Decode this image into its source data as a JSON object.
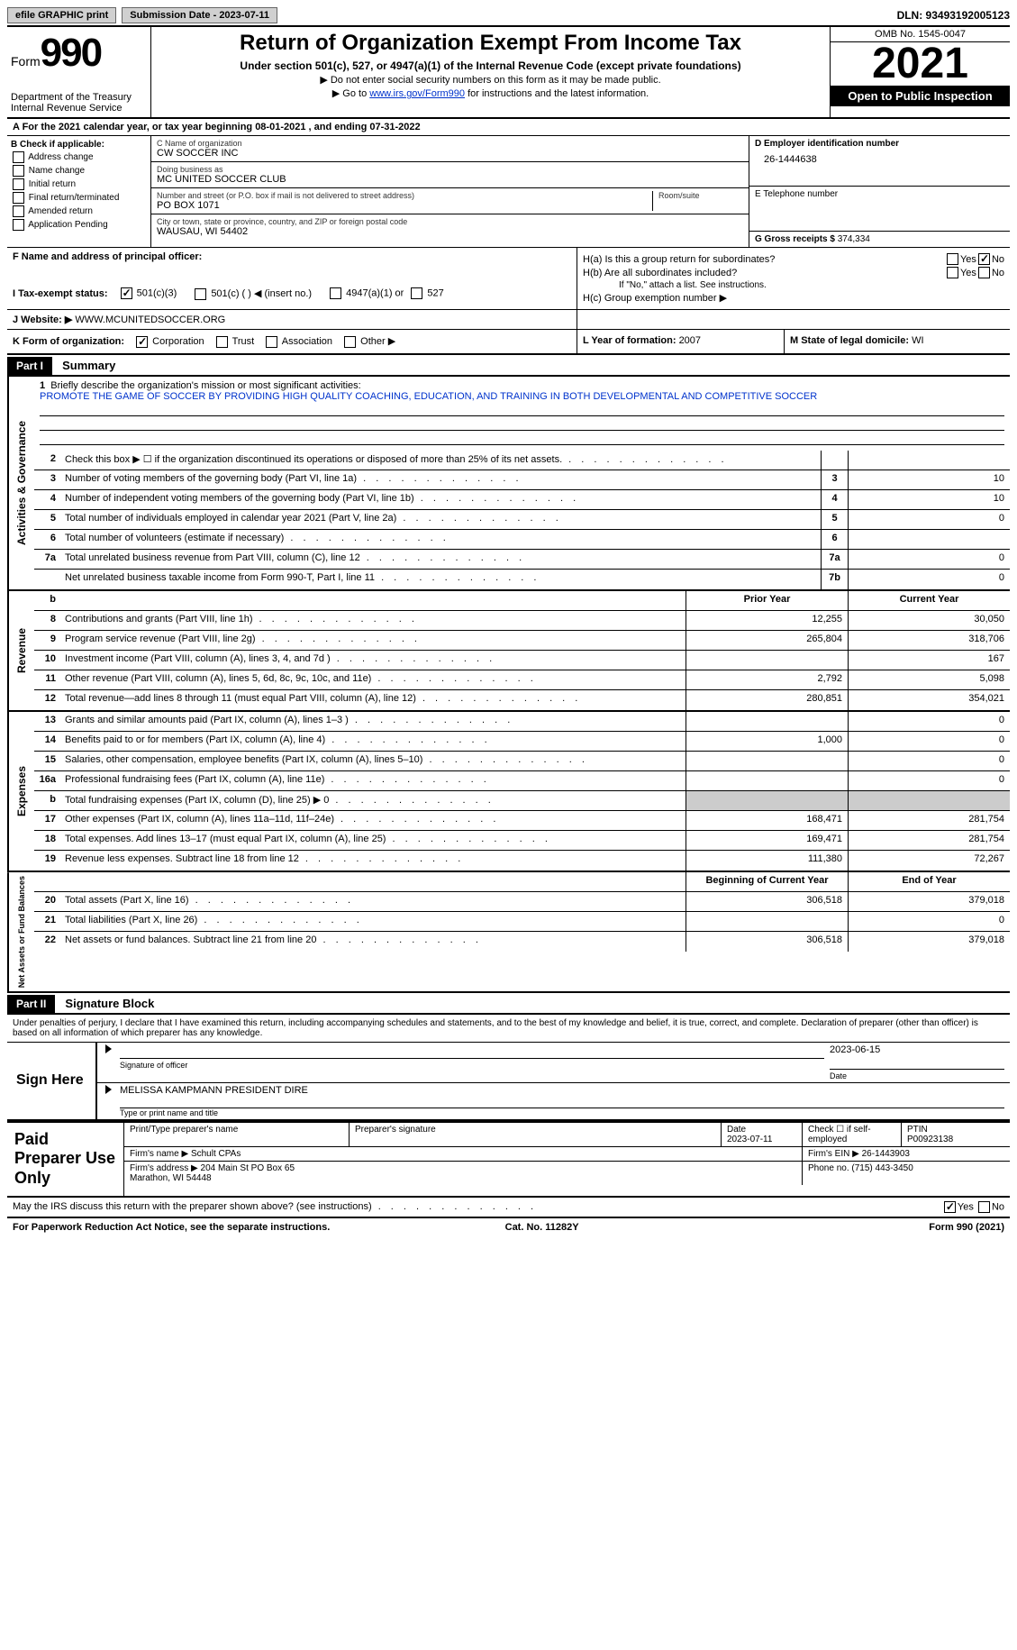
{
  "topbar": {
    "efile": "efile GRAPHIC print",
    "sub_date_label": "Submission Date - 2023-07-11",
    "dln": "DLN: 93493192005123"
  },
  "header": {
    "form_word": "Form",
    "form_num": "990",
    "dept": "Department of the Treasury\nInternal Revenue Service",
    "title": "Return of Organization Exempt From Income Tax",
    "subsection": "Under section 501(c), 527, or 4947(a)(1) of the Internal Revenue Code (except private foundations)",
    "note1": "▶ Do not enter social security numbers on this form as it may be made public.",
    "note2_pre": "▶ Go to ",
    "note2_link": "www.irs.gov/Form990",
    "note2_post": " for instructions and the latest information.",
    "omb": "OMB No. 1545-0047",
    "year": "2021",
    "open": "Open to Public Inspection"
  },
  "row_a": "A For the 2021 calendar year, or tax year beginning 08-01-2021   , and ending 07-31-2022",
  "col_b": {
    "hdr": "B Check if applicable:",
    "opts": [
      "Address change",
      "Name change",
      "Initial return",
      "Final return/terminated",
      "Amended return",
      "Application Pending"
    ]
  },
  "col_c": {
    "name_lbl": "C Name of organization",
    "name": "CW SOCCER INC",
    "dba_lbl": "Doing business as",
    "dba": "MC UNITED SOCCER CLUB",
    "street_lbl": "Number and street (or P.O. box if mail is not delivered to street address)",
    "room_lbl": "Room/suite",
    "street": "PO BOX 1071",
    "city_lbl": "City or town, state or province, country, and ZIP or foreign postal code",
    "city": "WAUSAU, WI  54402"
  },
  "col_d": {
    "ein_lbl": "D Employer identification number",
    "ein": "26-1444638",
    "tel_lbl": "E Telephone number",
    "tel": "",
    "gross_lbl": "G Gross receipts $ ",
    "gross": "374,334"
  },
  "row_f": {
    "lbl": "F Name and address of principal officer:",
    "val": ""
  },
  "row_h": {
    "ha": "H(a)  Is this a group return for subordinates?",
    "hb": "H(b)  Are all subordinates included?",
    "hb_note": "If \"No,\" attach a list. See instructions.",
    "hc": "H(c)  Group exemption number ▶",
    "yes": "Yes",
    "no": "No"
  },
  "row_i": {
    "lbl": "I   Tax-exempt status:",
    "o1": "501(c)(3)",
    "o2": "501(c) (   ) ◀ (insert no.)",
    "o3": "4947(a)(1) or",
    "o4": "527"
  },
  "row_j": {
    "lbl": "J   Website: ▶",
    "val": "WWW.MCUNITEDSOCCER.ORG"
  },
  "row_k": {
    "lbl": "K Form of organization:",
    "o1": "Corporation",
    "o2": "Trust",
    "o3": "Association",
    "o4": "Other ▶",
    "l_lbl": "L Year of formation: ",
    "l_val": "2007",
    "m_lbl": "M State of legal domicile: ",
    "m_val": "WI"
  },
  "part1": {
    "hdr": "Part I",
    "title": "Summary"
  },
  "mission": {
    "num": "1",
    "lbl": "Briefly describe the organization's mission or most significant activities:",
    "text": "PROMOTE THE GAME OF SOCCER BY PROVIDING HIGH QUALITY COACHING, EDUCATION, AND TRAINING IN BOTH DEVELOPMENTAL AND COMPETITIVE SOCCER"
  },
  "lines_gov": [
    {
      "n": "2",
      "d": "Check this box ▶ ☐ if the organization discontinued its operations or disposed of more than 25% of its net assets.",
      "box": "",
      "p": "",
      "c": ""
    },
    {
      "n": "3",
      "d": "Number of voting members of the governing body (Part VI, line 1a)",
      "box": "3",
      "p": "",
      "c": "10"
    },
    {
      "n": "4",
      "d": "Number of independent voting members of the governing body (Part VI, line 1b)",
      "box": "4",
      "p": "",
      "c": "10"
    },
    {
      "n": "5",
      "d": "Total number of individuals employed in calendar year 2021 (Part V, line 2a)",
      "box": "5",
      "p": "",
      "c": "0"
    },
    {
      "n": "6",
      "d": "Total number of volunteers (estimate if necessary)",
      "box": "6",
      "p": "",
      "c": ""
    },
    {
      "n": "7a",
      "d": "Total unrelated business revenue from Part VIII, column (C), line 12",
      "box": "7a",
      "p": "",
      "c": "0"
    },
    {
      "n": "",
      "d": "Net unrelated business taxable income from Form 990-T, Part I, line 11",
      "box": "7b",
      "p": "",
      "c": "0"
    }
  ],
  "col_hdrs": {
    "prior": "Prior Year",
    "curr": "Current Year"
  },
  "lines_rev": [
    {
      "n": "8",
      "d": "Contributions and grants (Part VIII, line 1h)",
      "p": "12,255",
      "c": "30,050"
    },
    {
      "n": "9",
      "d": "Program service revenue (Part VIII, line 2g)",
      "p": "265,804",
      "c": "318,706"
    },
    {
      "n": "10",
      "d": "Investment income (Part VIII, column (A), lines 3, 4, and 7d )",
      "p": "",
      "c": "167"
    },
    {
      "n": "11",
      "d": "Other revenue (Part VIII, column (A), lines 5, 6d, 8c, 9c, 10c, and 11e)",
      "p": "2,792",
      "c": "5,098"
    },
    {
      "n": "12",
      "d": "Total revenue—add lines 8 through 11 (must equal Part VIII, column (A), line 12)",
      "p": "280,851",
      "c": "354,021"
    }
  ],
  "lines_exp": [
    {
      "n": "13",
      "d": "Grants and similar amounts paid (Part IX, column (A), lines 1–3 )",
      "p": "",
      "c": "0"
    },
    {
      "n": "14",
      "d": "Benefits paid to or for members (Part IX, column (A), line 4)",
      "p": "1,000",
      "c": "0"
    },
    {
      "n": "15",
      "d": "Salaries, other compensation, employee benefits (Part IX, column (A), lines 5–10)",
      "p": "",
      "c": "0"
    },
    {
      "n": "16a",
      "d": "Professional fundraising fees (Part IX, column (A), line 11e)",
      "p": "",
      "c": "0"
    },
    {
      "n": "b",
      "d": "Total fundraising expenses (Part IX, column (D), line 25) ▶ 0",
      "p": "shade",
      "c": "shade"
    },
    {
      "n": "17",
      "d": "Other expenses (Part IX, column (A), lines 11a–11d, 11f–24e)",
      "p": "168,471",
      "c": "281,754"
    },
    {
      "n": "18",
      "d": "Total expenses. Add lines 13–17 (must equal Part IX, column (A), line 25)",
      "p": "169,471",
      "c": "281,754"
    },
    {
      "n": "19",
      "d": "Revenue less expenses. Subtract line 18 from line 12",
      "p": "111,380",
      "c": "72,267"
    }
  ],
  "col_hdrs2": {
    "prior": "Beginning of Current Year",
    "curr": "End of Year"
  },
  "lines_net": [
    {
      "n": "20",
      "d": "Total assets (Part X, line 16)",
      "p": "306,518",
      "c": "379,018"
    },
    {
      "n": "21",
      "d": "Total liabilities (Part X, line 26)",
      "p": "",
      "c": "0"
    },
    {
      "n": "22",
      "d": "Net assets or fund balances. Subtract line 21 from line 20",
      "p": "306,518",
      "c": "379,018"
    }
  ],
  "side_labels": {
    "gov": "Activities & Governance",
    "rev": "Revenue",
    "exp": "Expenses",
    "net": "Net Assets or Fund Balances"
  },
  "part2": {
    "hdr": "Part II",
    "title": "Signature Block"
  },
  "declare": "Under penalties of perjury, I declare that I have examined this return, including accompanying schedules and statements, and to the best of my knowledge and belief, it is true, correct, and complete. Declaration of preparer (other than officer) is based on all information of which preparer has any knowledge.",
  "sign": {
    "here": "Sign Here",
    "sig_lbl": "Signature of officer",
    "date_lbl": "Date",
    "date": "2023-06-15",
    "name": "MELISSA KAMPMANN  PRESIDENT DIRE",
    "name_lbl": "Type or print name and title"
  },
  "prep": {
    "left": "Paid Preparer Use Only",
    "r1": {
      "a": "Print/Type preparer's name",
      "b": "Preparer's signature",
      "c": "Date",
      "cval": "2023-07-11",
      "d": "Check ☐ if self-employed",
      "e": "PTIN",
      "eval": "P00923138"
    },
    "r2": {
      "a": "Firm's name   ▶",
      "aval": "Schult CPAs",
      "b": "Firm's EIN ▶",
      "bval": "26-1443903"
    },
    "r3": {
      "a": "Firm's address ▶",
      "aval": "204 Main St PO Box 65\nMarathon, WI  54448",
      "b": "Phone no.",
      "bval": "(715) 443-3450"
    }
  },
  "discuss": {
    "q": "May the IRS discuss this return with the preparer shown above? (see instructions)",
    "yes": "Yes",
    "no": "No"
  },
  "footer": {
    "l": "For Paperwork Reduction Act Notice, see the separate instructions.",
    "m": "Cat. No. 11282Y",
    "r": "Form 990 (2021)"
  }
}
